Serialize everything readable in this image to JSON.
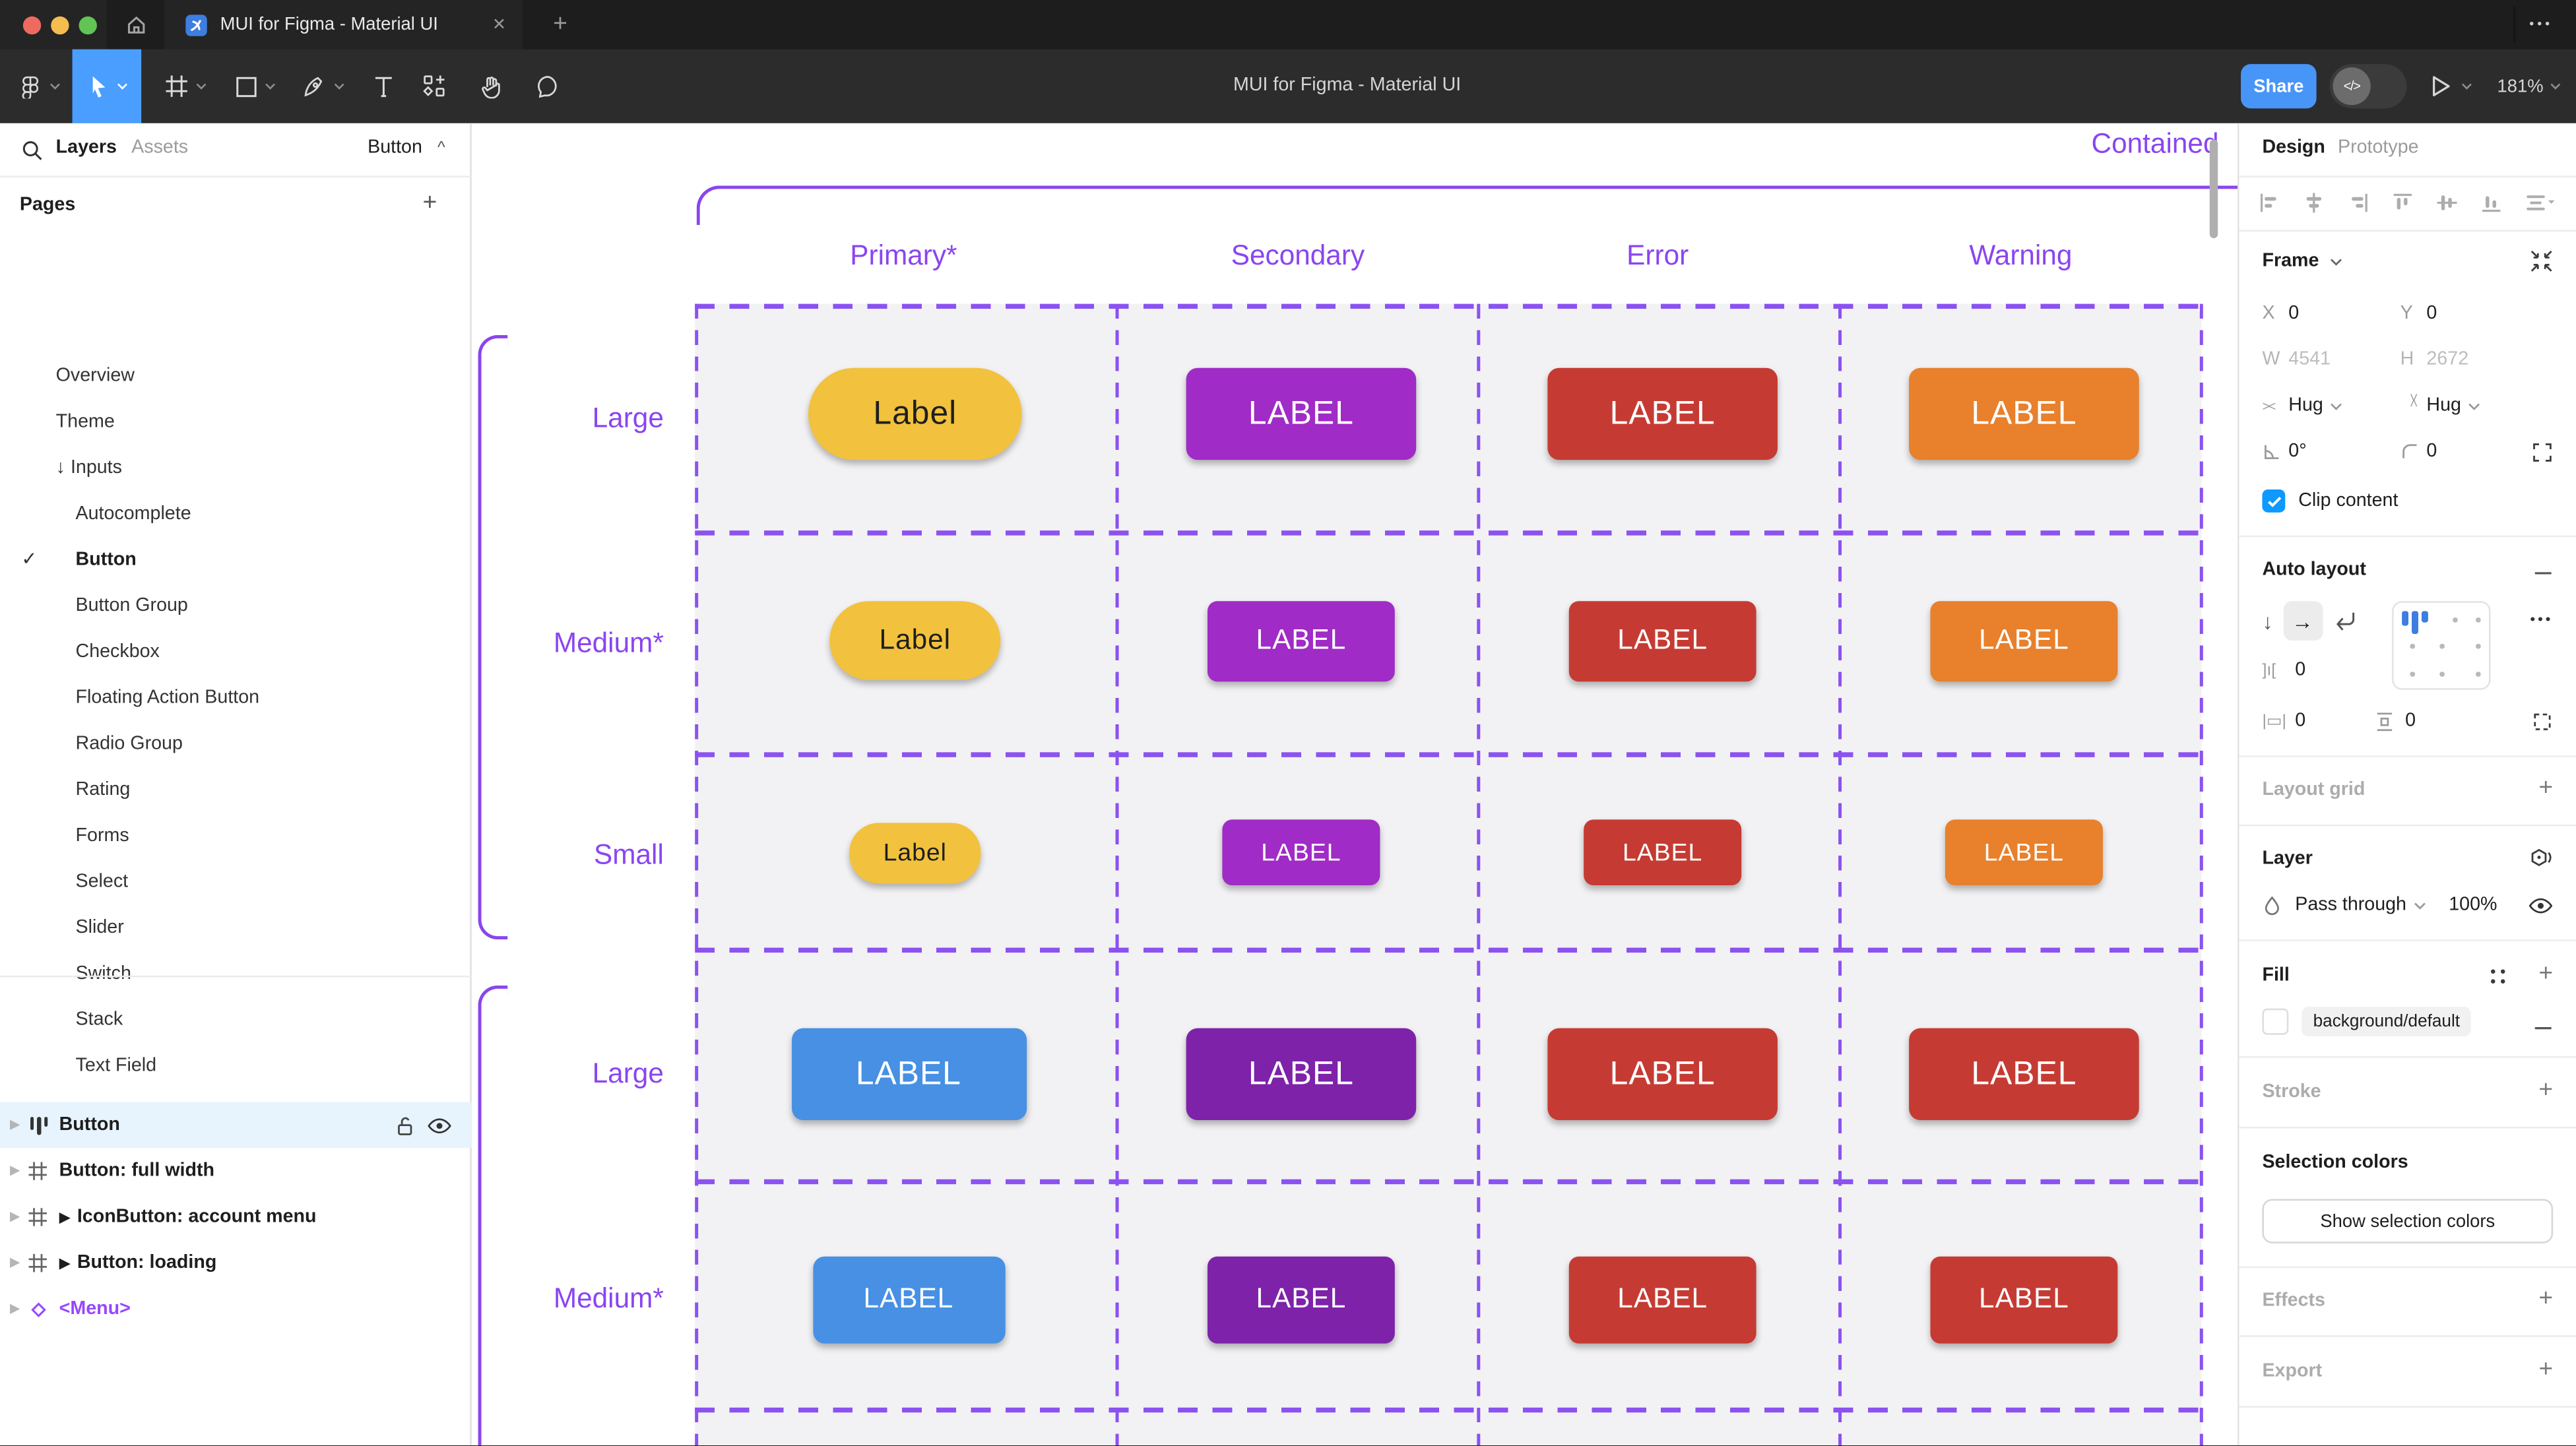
{
  "browser": {
    "tab_title": "MUI for Figma - Material UI",
    "close_glyph": "✕",
    "new_tab_glyph": "+",
    "more_glyph": "•••"
  },
  "toolbar": {
    "doc_title": "MUI for Figma - Material UI",
    "share_label": "Share",
    "dev_toggle_glyph": "</>",
    "zoom_level": "181%"
  },
  "sidebar": {
    "layers_tab": "Layers",
    "assets_tab": "Assets",
    "page_selector": "Button",
    "page_selector_caret": "^",
    "pages_title": "Pages",
    "add_page_glyph": "+",
    "check_glyph": "✓",
    "pages": [
      {
        "label": "Overview",
        "indent": 1
      },
      {
        "label": "Theme",
        "indent": 1
      },
      {
        "label": "Inputs",
        "indent": 1,
        "prefix": "↓"
      },
      {
        "label": "Autocomplete",
        "indent": 2
      },
      {
        "label": "Button",
        "indent": 2,
        "selected": true
      },
      {
        "label": "Button Group",
        "indent": 2
      },
      {
        "label": "Checkbox",
        "indent": 2
      },
      {
        "label": "Floating Action Button",
        "indent": 2
      },
      {
        "label": "Radio Group",
        "indent": 2
      },
      {
        "label": "Rating",
        "indent": 2
      },
      {
        "label": "Forms",
        "indent": 2
      },
      {
        "label": "Select",
        "indent": 2
      },
      {
        "label": "Slider",
        "indent": 2
      },
      {
        "label": "Switch",
        "indent": 2
      },
      {
        "label": "Stack",
        "indent": 2
      },
      {
        "label": "Text Field",
        "indent": 2
      }
    ],
    "layers": [
      {
        "label": "Button",
        "icon": "autolayout",
        "selected": true
      },
      {
        "label": "Button: full width",
        "icon": "frame"
      },
      {
        "label": "IconButton: account menu",
        "icon": "frame",
        "play": true
      },
      {
        "label": "Button: loading",
        "icon": "frame",
        "play": true
      },
      {
        "label": "<Menu>",
        "icon": "instance",
        "purple": true
      }
    ]
  },
  "canvas": {
    "frame_label": "Contained",
    "columns": [
      "Primary*",
      "Secondary",
      "Error",
      "Warning"
    ],
    "row_labels": [
      "Large",
      "Medium*",
      "Small",
      "Large",
      "Medium*"
    ],
    "accent_text": "#8A45F0",
    "dash_color": "#8B52F0",
    "outline_color": "#8A46EC",
    "button_rows": [
      [
        {
          "label": "Label",
          "bg": "#F2C23E",
          "fg": "#1F1F1F",
          "pill": true
        },
        {
          "label": "LABEL",
          "bg": "#A02BC6",
          "fg": "#FFFFFF"
        },
        {
          "label": "LABEL",
          "bg": "#C53B33",
          "fg": "#FFFFFF"
        },
        {
          "label": "LABEL",
          "bg": "#E8802C",
          "fg": "#FFFFFF"
        }
      ],
      [
        {
          "label": "Label",
          "bg": "#F2C23E",
          "fg": "#1F1F1F",
          "pill": true
        },
        {
          "label": "LABEL",
          "bg": "#A02BC6",
          "fg": "#FFFFFF"
        },
        {
          "label": "LABEL",
          "bg": "#C53B33",
          "fg": "#FFFFFF"
        },
        {
          "label": "LABEL",
          "bg": "#E8802C",
          "fg": "#FFFFFF"
        }
      ],
      [
        {
          "label": "Label",
          "bg": "#F2C23E",
          "fg": "#1F1F1F",
          "pill": true
        },
        {
          "label": "LABEL",
          "bg": "#A02BC6",
          "fg": "#FFFFFF"
        },
        {
          "label": "LABEL",
          "bg": "#C53B33",
          "fg": "#FFFFFF"
        },
        {
          "label": "LABEL",
          "bg": "#E8802C",
          "fg": "#FFFFFF"
        }
      ],
      [
        {
          "label": "LABEL",
          "bg": "#4790E4",
          "fg": "#FFFFFF"
        },
        {
          "label": "LABEL",
          "bg": "#7D22A9",
          "fg": "#FFFFFF"
        },
        {
          "label": "LABEL",
          "bg": "#C53B33",
          "fg": "#FFFFFF"
        },
        {
          "label": "LABEL",
          "bg": "#C53B33",
          "fg": "#FFFFFF"
        }
      ],
      [
        {
          "label": "LABEL",
          "bg": "#4790E4",
          "fg": "#FFFFFF"
        },
        {
          "label": "LABEL",
          "bg": "#7D22A9",
          "fg": "#FFFFFF"
        },
        {
          "label": "LABEL",
          "bg": "#C53B33",
          "fg": "#FFFFFF"
        },
        {
          "label": "LABEL",
          "bg": "#C53B33",
          "fg": "#FFFFFF"
        }
      ]
    ]
  },
  "panel": {
    "design_tab": "Design",
    "prototype_tab": "Prototype",
    "frame": {
      "title": "Frame",
      "x_label": "X",
      "x_value": "0",
      "y_label": "Y",
      "y_value": "0",
      "w_label": "W",
      "w_value": "4541",
      "h_label": "H",
      "h_value": "2672",
      "h_sizing": "Hug",
      "v_sizing": "Hug",
      "rotation": "0°",
      "corner_radius": "0",
      "clip_label": "Clip content"
    },
    "auto_layout": {
      "title": "Auto layout",
      "gap": "0",
      "padding_h": "0",
      "padding_v": "0"
    },
    "layout_grid_title": "Layout grid",
    "layer": {
      "title": "Layer",
      "blend_mode": "Pass through",
      "opacity": "100%"
    },
    "fill": {
      "title": "Fill",
      "token": "background/default"
    },
    "stroke_title": "Stroke",
    "selection_colors": {
      "title": "Selection colors",
      "button_label": "Show selection colors"
    },
    "effects_title": "Effects",
    "export_title": "Export"
  }
}
